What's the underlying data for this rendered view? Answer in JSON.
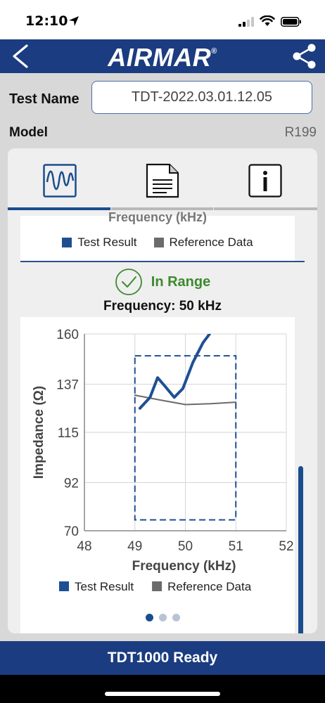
{
  "status_bar": {
    "time": "12:10"
  },
  "nav": {
    "logo": "AIRMAR",
    "logo_mark": "®"
  },
  "test_name": {
    "label": "Test Name",
    "value": "TDT-2022.03.01.12.05"
  },
  "model": {
    "label": "Model",
    "value": "R199"
  },
  "tabs": [
    {
      "icon": "waveform-icon",
      "active": true
    },
    {
      "icon": "document-icon",
      "active": false
    },
    {
      "icon": "info-icon",
      "active": false
    }
  ],
  "upper_panel": {
    "partial_title": "Frequency (kHz)",
    "legend": [
      "Test Result",
      "Reference Data"
    ]
  },
  "result": {
    "status": "In Range",
    "frequency": "Frequency: 50 kHz"
  },
  "chart_data": {
    "type": "line",
    "xlabel": "Frequency (kHz)",
    "ylabel": "Impedance (Ω)",
    "xlim": [
      48,
      52
    ],
    "ylim": [
      70,
      160
    ],
    "x_ticks": [
      "48",
      "49",
      "50",
      "51",
      "52"
    ],
    "y_ticks": [
      "70",
      "92",
      "115",
      "137",
      "160"
    ],
    "grid": true,
    "legend_position": "bottom",
    "range_box": {
      "x": [
        49,
        51
      ],
      "y": [
        75,
        150
      ]
    },
    "series": [
      {
        "name": "Test Result",
        "color": "#1f4f93",
        "x": [
          49.1,
          49.3,
          49.45,
          49.6,
          49.78,
          49.95,
          50.15,
          50.35,
          50.48
        ],
        "y": [
          126,
          131,
          140,
          136,
          131,
          135,
          147,
          156,
          160
        ]
      },
      {
        "name": "Reference Data",
        "color": "#6b6b6b",
        "x": [
          49.0,
          49.5,
          50.0,
          50.5,
          51.0
        ],
        "y": [
          132,
          129.8,
          127.7,
          128.1,
          128.8
        ]
      }
    ]
  },
  "pager": {
    "pages": 3,
    "active": 0
  },
  "footer": {
    "status": "TDT1000 Ready"
  }
}
